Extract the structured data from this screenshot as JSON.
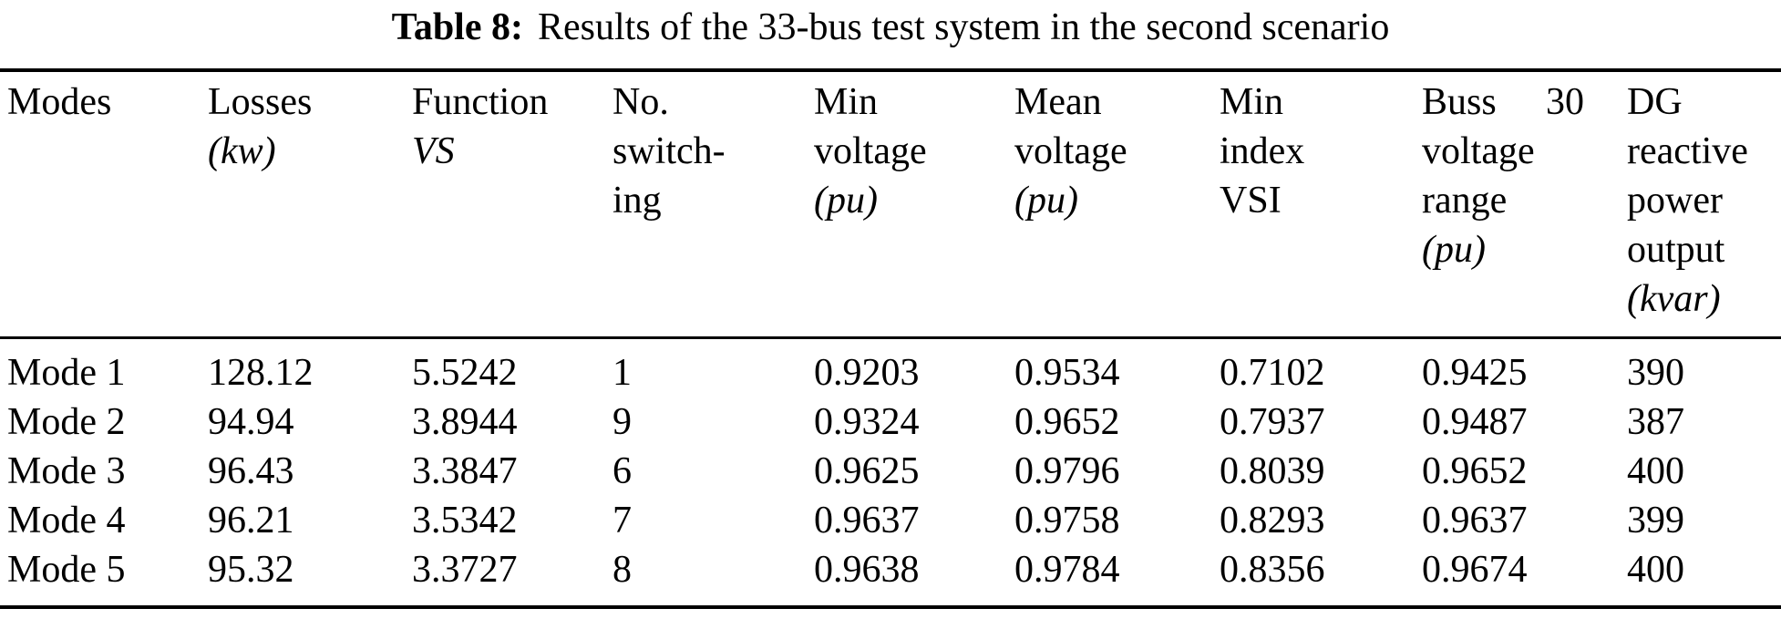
{
  "title": {
    "label": "Table 8:",
    "text": "Results of the 33-bus test system in the second scenario"
  },
  "table": {
    "header": [
      {
        "l1": "Modes"
      },
      {
        "l1": "Losses",
        "l2": "(kw)"
      },
      {
        "l1": "Function",
        "l2": "VS"
      },
      {
        "l1": "No.",
        "l2": "switch-",
        "l3": "ing"
      },
      {
        "l1": "Min",
        "l2": "voltage",
        "l3": "(pu)"
      },
      {
        "l1": "Mean",
        "l2": "voltage",
        "l3": "(pu)"
      },
      {
        "l1": "Min",
        "l2": "index",
        "l3": "VSI"
      },
      {
        "l1a": "Buss",
        "l1b": "30",
        "l2": "voltage",
        "l3": "range",
        "l4": "(pu)"
      },
      {
        "l1": "DG",
        "l2": "reactive",
        "l3": "power",
        "l4": "output",
        "l5": "(kvar)"
      }
    ],
    "rows": [
      [
        "Mode 1",
        "128.12",
        "5.5242",
        "1",
        "0.9203",
        "0.9534",
        "0.7102",
        "0.9425",
        "390"
      ],
      [
        "Mode 2",
        "94.94",
        "3.8944",
        "9",
        "0.9324",
        "0.9652",
        "0.7937",
        "0.9487",
        "387"
      ],
      [
        "Mode 3",
        "96.43",
        "3.3847",
        "6",
        "0.9625",
        "0.9796",
        "0.8039",
        "0.9652",
        "400"
      ],
      [
        "Mode 4",
        "96.21",
        "3.5342",
        "7",
        "0.9637",
        "0.9758",
        "0.8293",
        "0.9637",
        "399"
      ],
      [
        "Mode 5",
        "95.32",
        "3.3727",
        "8",
        "0.9638",
        "0.9784",
        "0.8356",
        "0.9674",
        "400"
      ]
    ]
  }
}
